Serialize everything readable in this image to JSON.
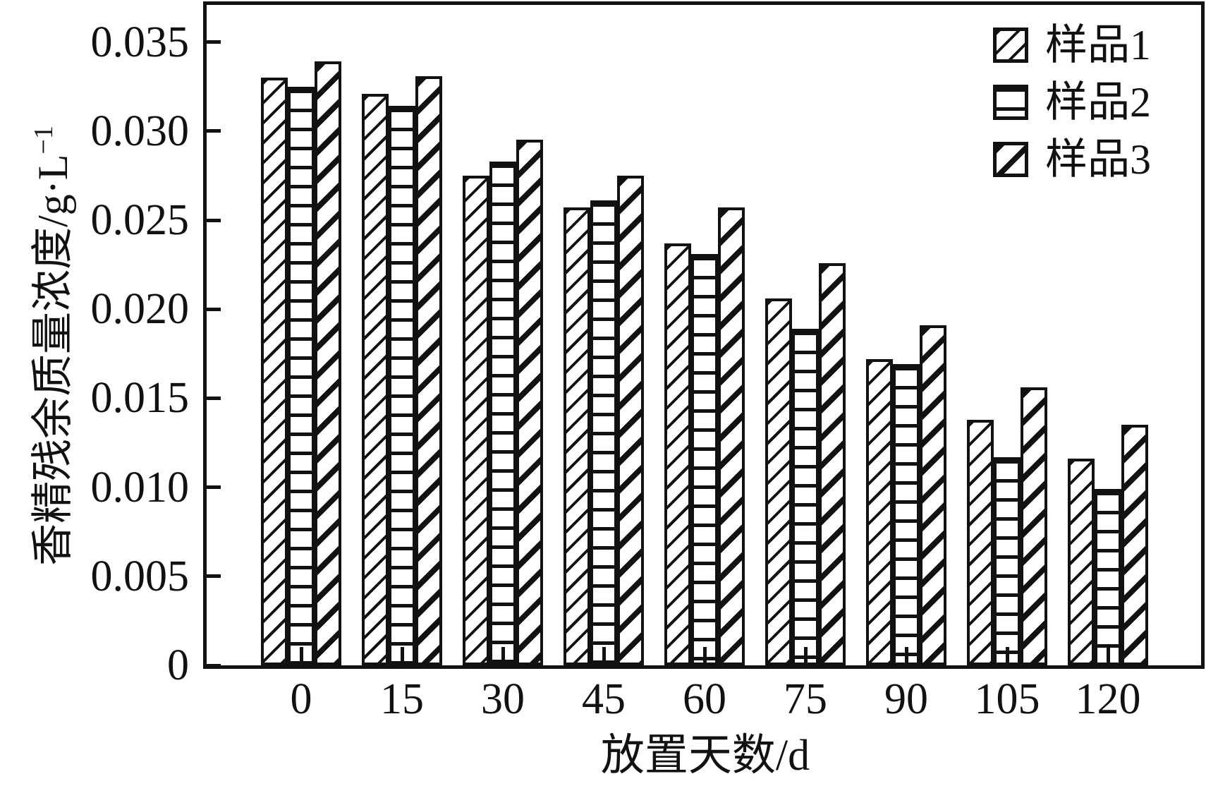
{
  "figure": {
    "ylabel_main": "香精残余质量浓度/g·L",
    "ylabel_superscript": "−1"
  },
  "colors": {
    "ink": "#111111",
    "background": "#ffffff"
  },
  "chart_data": {
    "type": "bar",
    "title": "",
    "xlabel": "放置天数/d",
    "ylabel": "香精残余质量浓度/g·L⁻¹",
    "categories": [
      "0",
      "15",
      "30",
      "45",
      "60",
      "75",
      "90",
      "105",
      "120"
    ],
    "series": [
      {
        "name": "样品1",
        "hatch": "thin-diagonal",
        "values": [
          0.033,
          0.0321,
          0.0275,
          0.0257,
          0.0237,
          0.0206,
          0.0172,
          0.0138,
          0.0116
        ]
      },
      {
        "name": "样品2",
        "hatch": "horizontal",
        "values": [
          0.0325,
          0.0314,
          0.0283,
          0.0261,
          0.0231,
          0.0189,
          0.0169,
          0.0117,
          0.0099
        ]
      },
      {
        "name": "样品3",
        "hatch": "thick-diagonal",
        "values": [
          0.0339,
          0.0331,
          0.0295,
          0.0275,
          0.0257,
          0.0226,
          0.0191,
          0.0156,
          0.0135
        ]
      }
    ],
    "ylim": [
      0,
      0.037
    ],
    "yticks": [
      0,
      0.005,
      0.01,
      0.015,
      0.02,
      0.025,
      0.03,
      0.035
    ],
    "ytick_labels": [
      "0",
      "0.005",
      "0.010",
      "0.015",
      "0.020",
      "0.025",
      "0.030",
      "0.035"
    ],
    "legend_position": "upper-right",
    "grid": false,
    "bar_edge_color": "#111111",
    "bar_fill_color": "#ffffff"
  }
}
